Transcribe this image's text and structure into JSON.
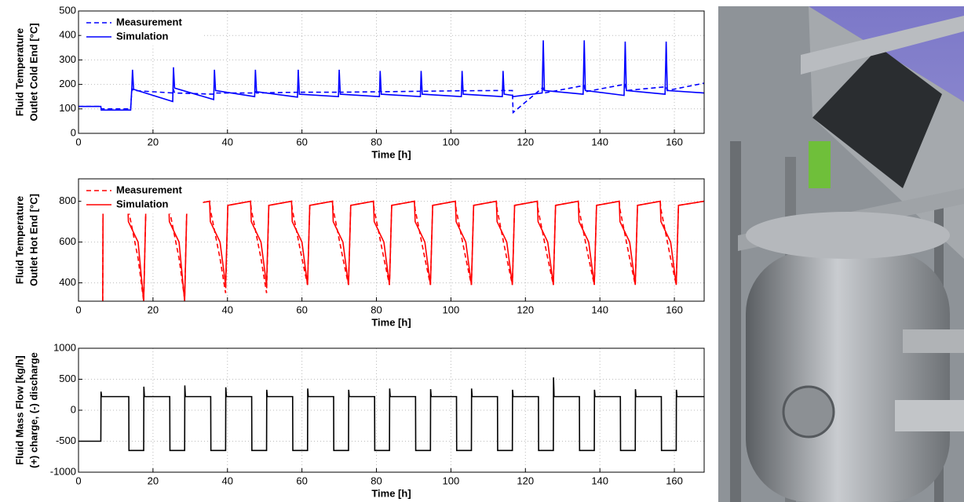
{
  "chart_data": [
    {
      "type": "line",
      "xlabel": "Time [h]",
      "ylabel": [
        "Fluid Temperature",
        "Outlet Cold End [°C]"
      ],
      "xlim": [
        0,
        168
      ],
      "xticks": [
        0,
        20,
        40,
        60,
        80,
        100,
        120,
        140,
        160
      ],
      "ylim": [
        0,
        500
      ],
      "yticks": [
        0,
        100,
        200,
        300,
        400,
        500
      ],
      "grid": true,
      "legend": "upper left",
      "x": [
        0,
        6,
        6.1,
        14,
        14.3,
        14.5,
        14.8,
        25.3,
        25.5,
        25.8,
        36.3,
        36.5,
        36.8,
        47.3,
        47.5,
        47.8,
        58.8,
        59,
        59.3,
        69.8,
        70,
        70.3,
        80.8,
        81,
        81.3,
        91.8,
        92,
        92.3,
        102.8,
        103,
        103.3,
        113.8,
        114,
        114.3,
        116.5,
        116.7,
        124.5,
        124.8,
        125.1,
        135.5,
        135.8,
        136.1,
        146.5,
        146.8,
        147.1,
        157.5,
        157.8,
        158.1,
        168
      ],
      "series": [
        {
          "name": "Measurement",
          "color": "#0000ff",
          "linestyle": "dashed",
          "values": [
            110,
            110,
            100,
            100,
            175,
            180,
            175,
            165,
            180,
            165,
            160,
            165,
            165,
            165,
            170,
            165,
            168,
            172,
            168,
            168,
            172,
            168,
            170,
            174,
            170,
            172,
            176,
            172,
            174,
            178,
            174,
            175,
            178,
            175,
            175,
            85,
            185,
            185,
            165,
            195,
            195,
            170,
            200,
            200,
            175,
            190,
            190,
            175,
            205
          ]
        },
        {
          "name": "Simulation",
          "color": "#0000ff",
          "linestyle": "solid",
          "values": [
            110,
            110,
            95,
            95,
            180,
            260,
            180,
            130,
            270,
            185,
            138,
            260,
            175,
            150,
            260,
            170,
            148,
            260,
            160,
            150,
            260,
            160,
            150,
            255,
            160,
            150,
            255,
            160,
            150,
            255,
            160,
            150,
            255,
            160,
            155,
            150,
            165,
            380,
            175,
            160,
            380,
            175,
            155,
            375,
            175,
            160,
            375,
            175,
            165
          ]
        }
      ]
    },
    {
      "type": "line",
      "xlabel": "Time [h]",
      "ylabel": [
        "Fluid Temperature",
        "Outlet Hot End [°C]"
      ],
      "xlim": [
        0,
        168
      ],
      "xticks": [
        0,
        20,
        40,
        60,
        80,
        100,
        120,
        140,
        160
      ],
      "ylim": [
        310,
        910
      ],
      "yticks": [
        400,
        600,
        800
      ],
      "grid": true,
      "legend": "upper left",
      "x": [
        6.5,
        6.6,
        13.2,
        13.4,
        16,
        17.5,
        18.1,
        24.2,
        24.4,
        27,
        28.5,
        29.1,
        35.2,
        35.4,
        38,
        39.5,
        40.1,
        46.2,
        46.4,
        49,
        50.5,
        51.1,
        57.2,
        57.4,
        60,
        61.5,
        62.1,
        68.2,
        68.4,
        71,
        72.5,
        73.1,
        79.2,
        79.4,
        82,
        83.5,
        84.1,
        90.2,
        90.4,
        93,
        94.5,
        95.1,
        101.2,
        101.4,
        104,
        105.5,
        106.1,
        112.2,
        112.4,
        115,
        116.5,
        117.1,
        123.2,
        123.4,
        126,
        127.5,
        128.1,
        134.2,
        134.4,
        137,
        138.5,
        139.1,
        145.2,
        145.4,
        148,
        149.5,
        150.1,
        156.2,
        156.4,
        159,
        160.5,
        161.1,
        168
      ],
      "series": [
        {
          "name": "Measurement",
          "color": "#ff0000",
          "linestyle": "dashed",
          "values": [
            310,
            800,
            800,
            760,
            520,
            310,
            780,
            800,
            760,
            520,
            320,
            780,
            800,
            760,
            520,
            350,
            780,
            800,
            760,
            520,
            350,
            780,
            800,
            760,
            520,
            390,
            780,
            800,
            760,
            520,
            390,
            780,
            800,
            760,
            520,
            390,
            780,
            800,
            760,
            520,
            390,
            780,
            800,
            760,
            520,
            390,
            780,
            800,
            760,
            520,
            390,
            780,
            800,
            760,
            520,
            390,
            780,
            800,
            760,
            520,
            390,
            780,
            800,
            760,
            520,
            390,
            780,
            800,
            760,
            520,
            390,
            780,
            800
          ]
        },
        {
          "name": "Simulation",
          "color": "#ff0000",
          "linestyle": "solid",
          "values": [
            310,
            800,
            800,
            700,
            600,
            310,
            780,
            800,
            700,
            600,
            310,
            780,
            800,
            700,
            600,
            390,
            780,
            800,
            700,
            600,
            390,
            780,
            800,
            700,
            600,
            390,
            780,
            800,
            700,
            600,
            390,
            780,
            800,
            700,
            600,
            390,
            780,
            800,
            700,
            600,
            390,
            780,
            800,
            700,
            600,
            390,
            780,
            800,
            700,
            600,
            390,
            780,
            800,
            700,
            600,
            390,
            780,
            800,
            700,
            600,
            390,
            780,
            800,
            700,
            600,
            390,
            780,
            800,
            700,
            600,
            390,
            780,
            800
          ]
        }
      ]
    },
    {
      "type": "line",
      "xlabel": "Time [h]",
      "ylabel": [
        "Fluid Mass Flow [kg/h]",
        "(+) charge, (-) discharge"
      ],
      "xlim": [
        0,
        168
      ],
      "xticks": [
        0,
        20,
        40,
        60,
        80,
        100,
        120,
        140,
        160
      ],
      "ylim": [
        -1000,
        1000
      ],
      "yticks": [
        -1000,
        -500,
        0,
        500,
        1000
      ],
      "grid": true,
      "x": [
        0,
        6,
        6.05,
        6.2,
        13.5,
        13.55,
        17.5,
        17.55,
        17.7,
        24.5,
        24.55,
        28.5,
        28.55,
        28.7,
        35.5,
        35.55,
        39.5,
        39.55,
        39.7,
        46.5,
        46.55,
        50.5,
        50.55,
        50.7,
        57.5,
        57.55,
        61.5,
        61.55,
        61.7,
        68.5,
        68.55,
        72.5,
        72.55,
        72.7,
        79.5,
        79.55,
        83.5,
        83.55,
        83.7,
        90.5,
        90.55,
        94.5,
        94.55,
        94.7,
        101.5,
        101.55,
        105.5,
        105.55,
        105.7,
        112.5,
        112.55,
        116.5,
        116.55,
        116.7,
        123.5,
        123.55,
        127.5,
        127.55,
        127.7,
        134.5,
        134.55,
        138.5,
        138.55,
        138.7,
        145.5,
        145.55,
        149.5,
        149.55,
        149.7,
        156.5,
        156.55,
        160.5,
        160.55,
        160.7,
        168
      ],
      "series": [
        {
          "color": "#000000",
          "linestyle": "solid",
          "values": [
            -500,
            -500,
            300,
            220,
            220,
            -650,
            -650,
            380,
            220,
            220,
            -650,
            -650,
            400,
            220,
            220,
            -650,
            -650,
            370,
            220,
            220,
            -650,
            -650,
            330,
            220,
            220,
            -650,
            -650,
            350,
            220,
            220,
            -650,
            -650,
            330,
            220,
            220,
            -650,
            -650,
            350,
            220,
            220,
            -650,
            -650,
            340,
            220,
            220,
            -650,
            -650,
            350,
            220,
            220,
            -650,
            -650,
            330,
            220,
            220,
            -650,
            -650,
            530,
            220,
            220,
            -650,
            -650,
            330,
            220,
            220,
            -650,
            -650,
            340,
            220,
            220,
            -650,
            -650,
            330,
            220,
            220
          ]
        }
      ]
    }
  ]
}
